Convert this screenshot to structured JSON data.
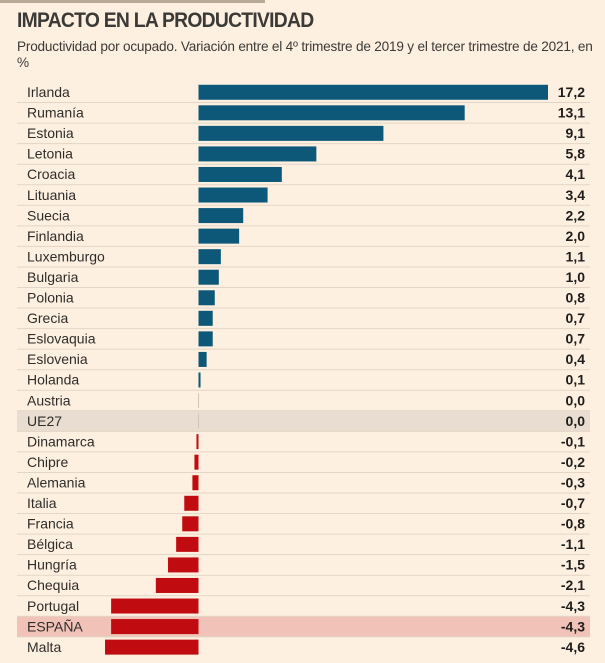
{
  "header": {
    "title": "IMPACTO EN LA PRODUCTIVIDAD",
    "subtitle": "Productividad por ocupado. Variación entre el 4º trimestre de 2019 y el tercer trimestre de 2021, en %"
  },
  "colors": {
    "positive": "#0d5878",
    "negative": "#c00c10",
    "highlight_eu": "#e8ddd0",
    "highlight_spain": "#f1c2b7",
    "background": "#fdf0e1",
    "separator": "#e3d6c6"
  },
  "chart_data": {
    "type": "bar",
    "orientation": "horizontal",
    "title": "IMPACTO EN LA PRODUCTIVIDAD",
    "subtitle": "Productividad por ocupado. Variación entre el 4º trimestre de 2019 y el tercer trimestre de 2021, en %",
    "xlabel": "",
    "ylabel": "",
    "unit": "%",
    "xlim": [
      -4.6,
      17.2
    ],
    "grid": false,
    "legend": "none",
    "categories": [
      "Irlanda",
      "Rumanía",
      "Estonia",
      "Letonia",
      "Croacia",
      "Lituania",
      "Suecia",
      "Finlandia",
      "Luxemburgo",
      "Bulgaria",
      "Polonia",
      "Grecia",
      "Eslovaquia",
      "Eslovenia",
      "Holanda",
      "Austria",
      "UE27",
      "Dinamarca",
      "Chipre",
      "Alemania",
      "Italia",
      "Francia",
      "Bélgica",
      "Hungría",
      "Chequia",
      "Portugal",
      "ESPAÑA",
      "Malta"
    ],
    "values": [
      17.2,
      13.1,
      9.1,
      5.8,
      4.1,
      3.4,
      2.2,
      2.0,
      1.1,
      1.0,
      0.8,
      0.7,
      0.7,
      0.4,
      0.1,
      0.0,
      0.0,
      -0.1,
      -0.2,
      -0.3,
      -0.7,
      -0.8,
      -1.1,
      -1.5,
      -2.1,
      -4.3,
      -4.3,
      -4.6
    ],
    "value_labels": [
      "17,2",
      "13,1",
      "9,1",
      "5,8",
      "4,1",
      "3,4",
      "2,2",
      "2,0",
      "1,1",
      "1,0",
      "0,8",
      "0,7",
      "0,7",
      "0,4",
      "0,1",
      "0,0",
      "0,0",
      "-0,1",
      "-0,2",
      "-0,3",
      "-0,7",
      "-0,8",
      "-1,1",
      "-1,5",
      "-2,1",
      "-4,3",
      "-4,3",
      "-4,6"
    ],
    "highlighted": {
      "UE27": "eu",
      "ESPAÑA": "spain"
    }
  }
}
